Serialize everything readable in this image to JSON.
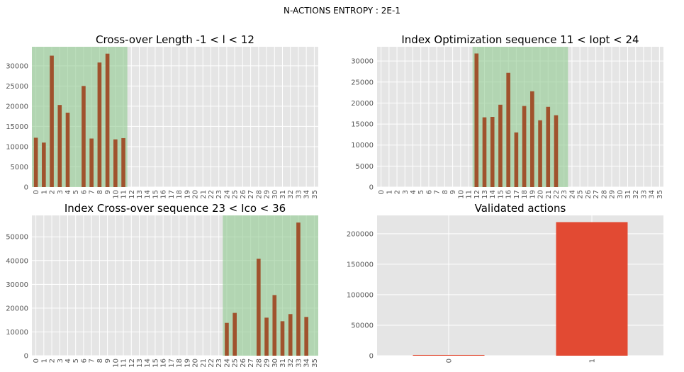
{
  "figure": {
    "suptitle": "N-ACTIONS ENTROPY : 2E-1"
  },
  "chart_data": [
    {
      "type": "bar",
      "title": "Cross-over Length -1 < l < 12",
      "categories": [
        "0",
        "1",
        "2",
        "3",
        "4",
        "5",
        "6",
        "7",
        "8",
        "9",
        "10",
        "11",
        "12",
        "13",
        "14",
        "15",
        "16",
        "17",
        "18",
        "19",
        "20",
        "21",
        "22",
        "23",
        "24",
        "25",
        "26",
        "27",
        "28",
        "29",
        "30",
        "31",
        "32",
        "33",
        "34",
        "35"
      ],
      "values": [
        12200,
        11000,
        32500,
        20300,
        18400,
        0,
        25000,
        12000,
        30800,
        33000,
        11800,
        12100,
        0,
        0,
        0,
        0,
        0,
        0,
        0,
        0,
        0,
        0,
        0,
        0,
        0,
        0,
        0,
        0,
        0,
        0,
        0,
        0,
        0,
        0,
        0,
        0
      ],
      "ylim": [
        0,
        34700
      ],
      "yticks": [
        0,
        5000,
        10000,
        15000,
        20000,
        25000,
        30000
      ],
      "highlight": [
        -0.5,
        11.5
      ],
      "bar_color": "#a0522d",
      "highlight_color": "#8fc98f",
      "grid": true
    },
    {
      "type": "bar",
      "title": "Index Optimization sequence 11 < Iopt < 24",
      "categories": [
        "0",
        "1",
        "2",
        "3",
        "4",
        "5",
        "6",
        "7",
        "8",
        "9",
        "10",
        "11",
        "12",
        "13",
        "14",
        "15",
        "16",
        "17",
        "18",
        "19",
        "20",
        "21",
        "22",
        "23",
        "24",
        "25",
        "26",
        "27",
        "28",
        "29",
        "30",
        "31",
        "32",
        "33",
        "34",
        "35"
      ],
      "values": [
        0,
        0,
        0,
        0,
        0,
        0,
        0,
        0,
        0,
        0,
        0,
        0,
        31800,
        16600,
        16700,
        19600,
        27200,
        13000,
        19300,
        22800,
        15900,
        19100,
        17100,
        0,
        0,
        0,
        0,
        0,
        0,
        0,
        0,
        0,
        0,
        0,
        0,
        0
      ],
      "ylim": [
        0,
        33400
      ],
      "yticks": [
        0,
        5000,
        10000,
        15000,
        20000,
        25000,
        30000
      ],
      "highlight": [
        11.5,
        23.5
      ],
      "bar_color": "#a0522d",
      "highlight_color": "#8fc98f",
      "grid": true
    },
    {
      "type": "bar",
      "title": "Index Cross-over sequence 23 < Ico < 36",
      "categories": [
        "0",
        "1",
        "2",
        "3",
        "4",
        "5",
        "6",
        "7",
        "8",
        "9",
        "10",
        "11",
        "12",
        "13",
        "14",
        "15",
        "16",
        "17",
        "18",
        "19",
        "20",
        "21",
        "22",
        "23",
        "24",
        "25",
        "26",
        "27",
        "28",
        "29",
        "30",
        "31",
        "32",
        "33",
        "34",
        "35"
      ],
      "values": [
        0,
        0,
        0,
        0,
        0,
        0,
        0,
        0,
        0,
        0,
        0,
        0,
        0,
        0,
        0,
        0,
        0,
        0,
        0,
        0,
        0,
        0,
        0,
        0,
        13800,
        18000,
        0,
        0,
        40800,
        16000,
        25500,
        14500,
        17500,
        56000,
        16300,
        0
      ],
      "ylim": [
        0,
        59000
      ],
      "yticks": [
        0,
        10000,
        20000,
        30000,
        40000,
        50000
      ],
      "highlight": [
        23.5,
        35.5
      ],
      "bar_color": "#a0522d",
      "highlight_color": "#8fc98f",
      "grid": true
    },
    {
      "type": "bar",
      "title": "Validated actions",
      "categories": [
        "0",
        "1"
      ],
      "values": [
        1200,
        219000
      ],
      "ylim": [
        0,
        230000
      ],
      "yticks": [
        0,
        50000,
        100000,
        150000,
        200000
      ],
      "bar_color": "#e24a33",
      "grid": true
    }
  ]
}
